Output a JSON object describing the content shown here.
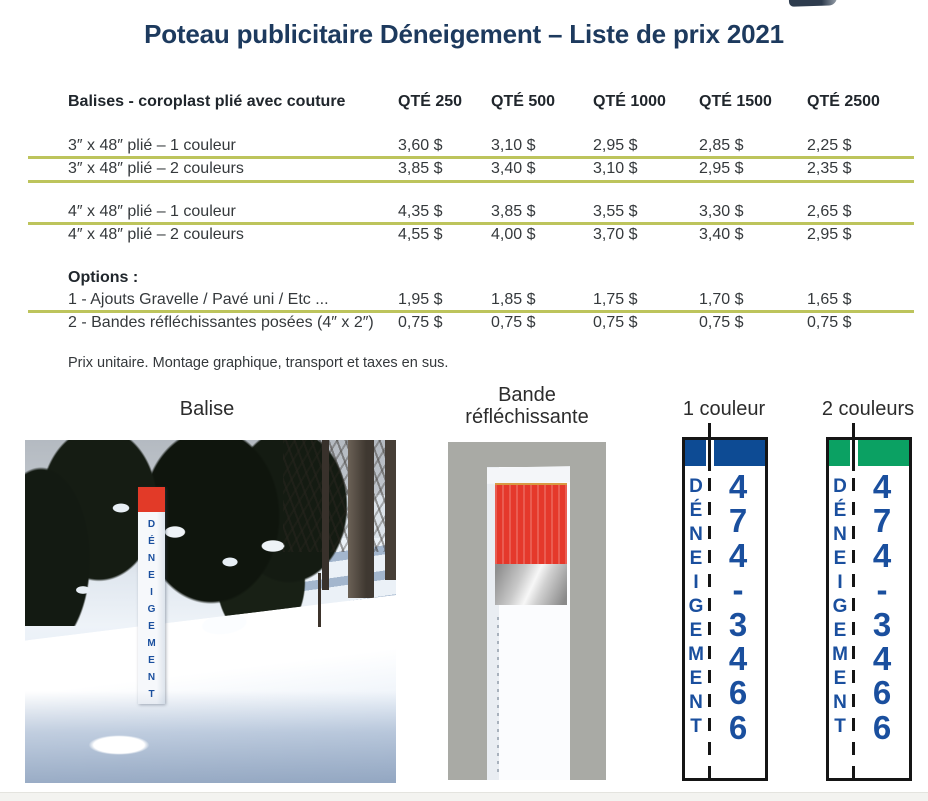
{
  "page": {
    "title": "Poteau publicitaire Déneigement – Liste de prix 2021"
  },
  "table": {
    "header_label": "Balises - coroplast plié avec couture",
    "qty_headers": [
      "QTÉ 250",
      "QTÉ 500",
      "QTÉ 1000",
      "QTÉ 1500",
      "QTÉ 2500"
    ],
    "rows": [
      {
        "label": "3″ x 48″ plié – 1 couleur",
        "prices": [
          "3,60 $",
          "3,10 $",
          "2,95 $",
          "2,85 $",
          "2,25 $"
        ]
      },
      {
        "label": "3″ x 48″ plié – 2 couleurs",
        "prices": [
          "3,85 $",
          "3,40 $",
          "3,10 $",
          "2,95 $",
          "2,35 $"
        ]
      },
      {
        "label": "4″ x 48″ plié – 1 couleur",
        "prices": [
          "4,35 $",
          "3,85 $",
          "3,55 $",
          "3,30 $",
          "2,65 $"
        ]
      },
      {
        "label": "4″ x 48″ plié – 2 couleurs",
        "prices": [
          "4,55 $",
          "4,00 $",
          "3,70 $",
          "3,40 $",
          "2,95 $"
        ]
      }
    ],
    "options_title": "Options :",
    "option_rows": [
      {
        "label": "1 - Ajouts Gravelle / Pavé uni / Etc ...",
        "prices": [
          "1,95 $",
          "1,85 $",
          "1,75 $",
          "1,70 $",
          "1,65 $"
        ]
      },
      {
        "label": "2 - Bandes réfléchissantes posées (4″ x 2″)",
        "prices": [
          "0,75 $",
          "0,75 $",
          "0,75 $",
          "0,75 $",
          "0,75 $"
        ]
      }
    ],
    "note": "Prix unitaire. Montage graphique, transport et taxes en sus."
  },
  "figures": {
    "balise": {
      "label": "Balise",
      "post_text": "DÉNEIGEMENT"
    },
    "bande": {
      "label_line1": "Bande",
      "label_line2": "réfléchissante"
    },
    "one_colour": {
      "label": "1 couleur",
      "post_text": "DÉNEIGEMENT",
      "phone": "474-3466"
    },
    "two_colours": {
      "label": "2 couleurs",
      "post_text": "DÉNEIGEMENT",
      "phone": "474-3466"
    }
  },
  "colors": {
    "title_navy": "#1d3a5e",
    "divider_green": "#bdc45c",
    "header_blue_block": "#0d4b94",
    "header_green_block": "#0ba163",
    "post_text_blue": "#1a4f9e",
    "balise_red": "#e23a28",
    "bande_background_gray": "#a9aaa5"
  }
}
